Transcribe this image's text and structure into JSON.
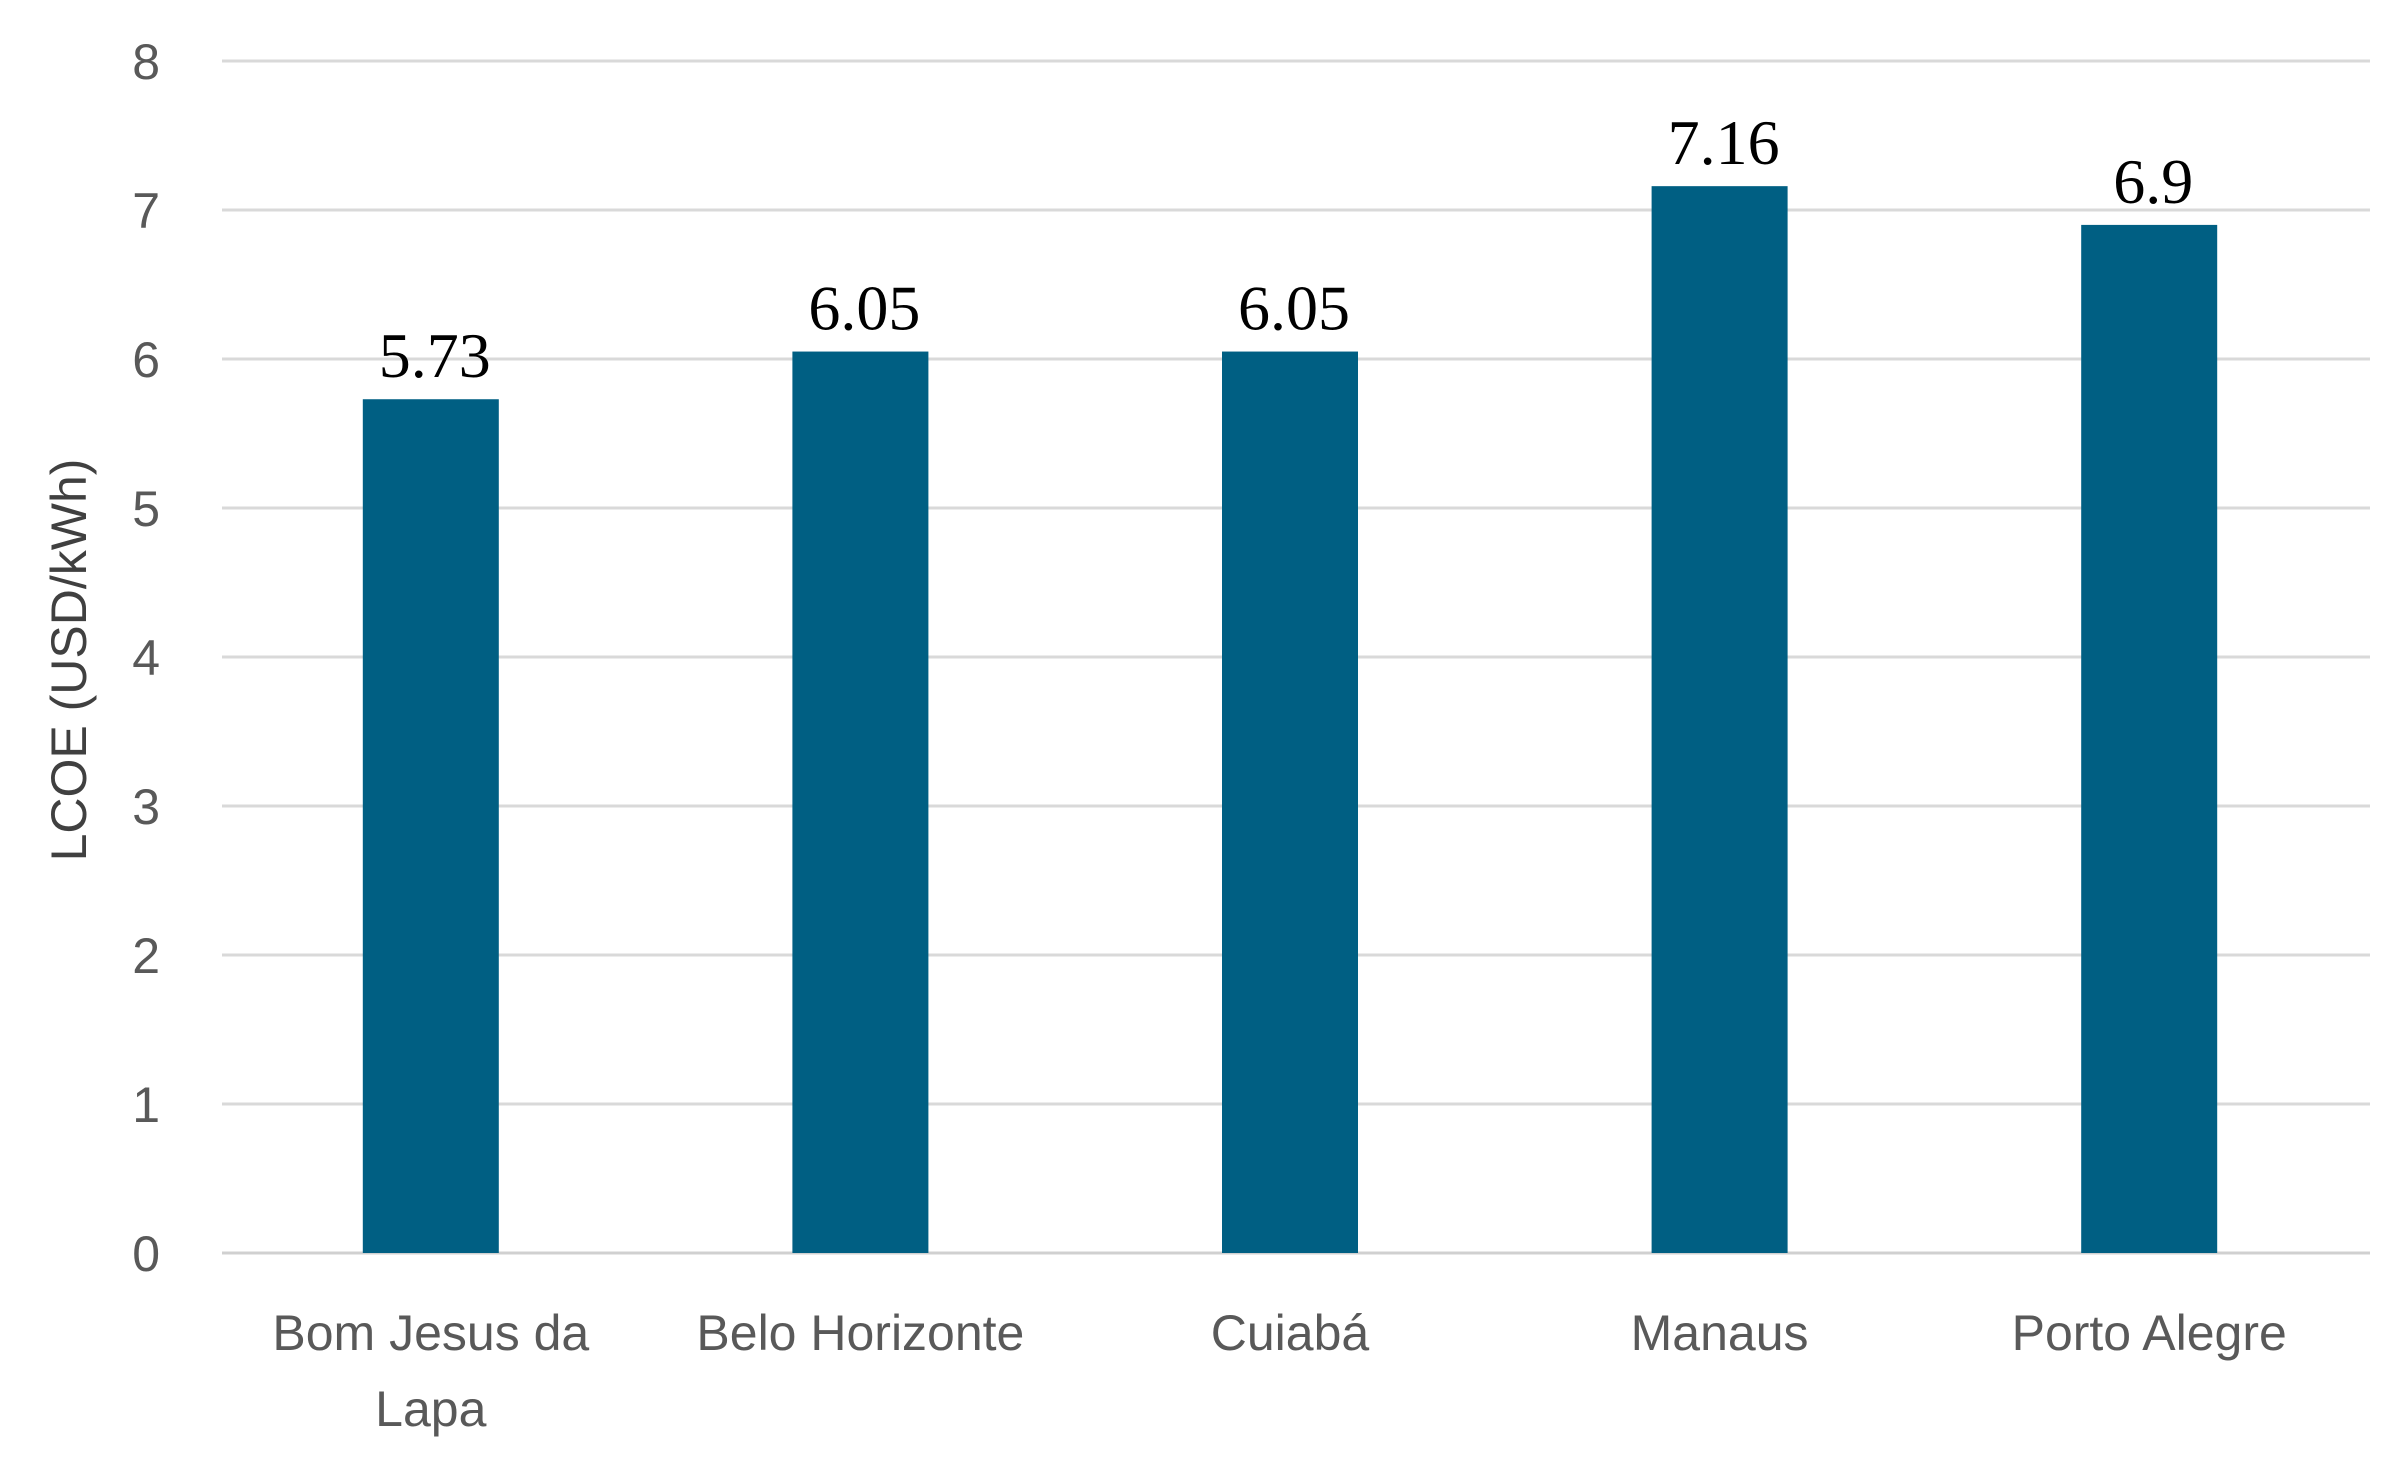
{
  "chart_data": {
    "type": "bar",
    "categories": [
      [
        "Bom Jesus da",
        "Lapa"
      ],
      [
        "Belo Horizonte"
      ],
      [
        "Cuiabá"
      ],
      [
        "Manaus"
      ],
      [
        "Porto Alegre"
      ]
    ],
    "values": [
      5.73,
      6.05,
      6.05,
      7.16,
      6.9
    ],
    "data_labels": [
      "5.73",
      "6.05",
      "6.05",
      "7.16",
      "6.9"
    ],
    "title": "",
    "xlabel": "",
    "ylabel": "LCOE (USD/kWh)",
    "ylim": [
      0,
      8
    ],
    "yticks": [
      0,
      1,
      2,
      3,
      4,
      5,
      6,
      7,
      8
    ],
    "grid": true,
    "legend": "none",
    "bar_color": "#005f83"
  }
}
